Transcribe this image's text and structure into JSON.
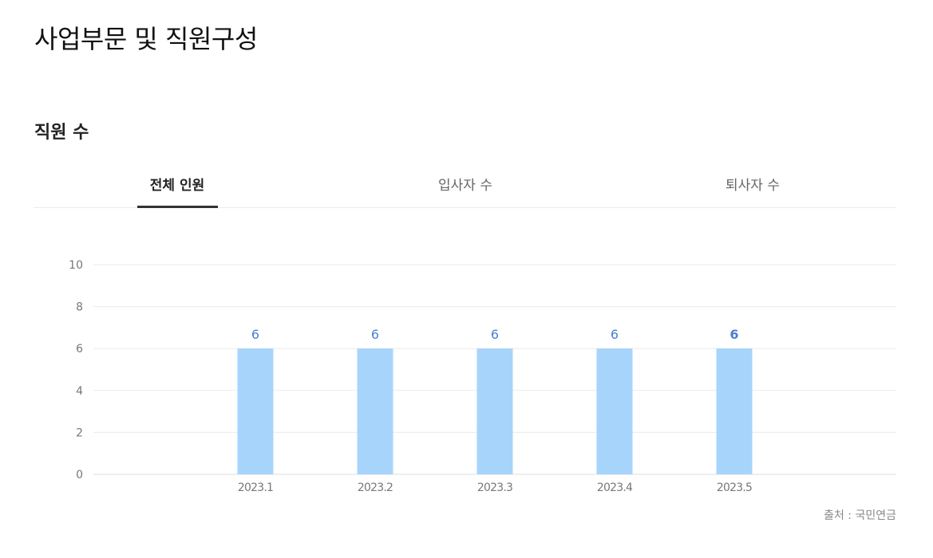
{
  "page": {
    "title": "사업부문 및 직원구성",
    "section_title": "직원 수"
  },
  "tabs": [
    {
      "label": "전체 인원",
      "active": true
    },
    {
      "label": "입사자 수",
      "active": false
    },
    {
      "label": "퇴사자 수",
      "active": false
    }
  ],
  "chart_data": {
    "type": "bar",
    "categories": [
      "2023.1",
      "2023.2",
      "2023.3",
      "2023.4",
      "2023.5"
    ],
    "values": [
      6,
      6,
      6,
      6,
      6
    ],
    "ylim": [
      0,
      10
    ],
    "yticks": [
      0,
      2,
      4,
      6,
      8,
      10
    ],
    "grid": true,
    "bar_color": "#a6d4fb",
    "label_color": "#4a7fd4",
    "highlight_last": true
  },
  "source": "출처 : 국민연금"
}
